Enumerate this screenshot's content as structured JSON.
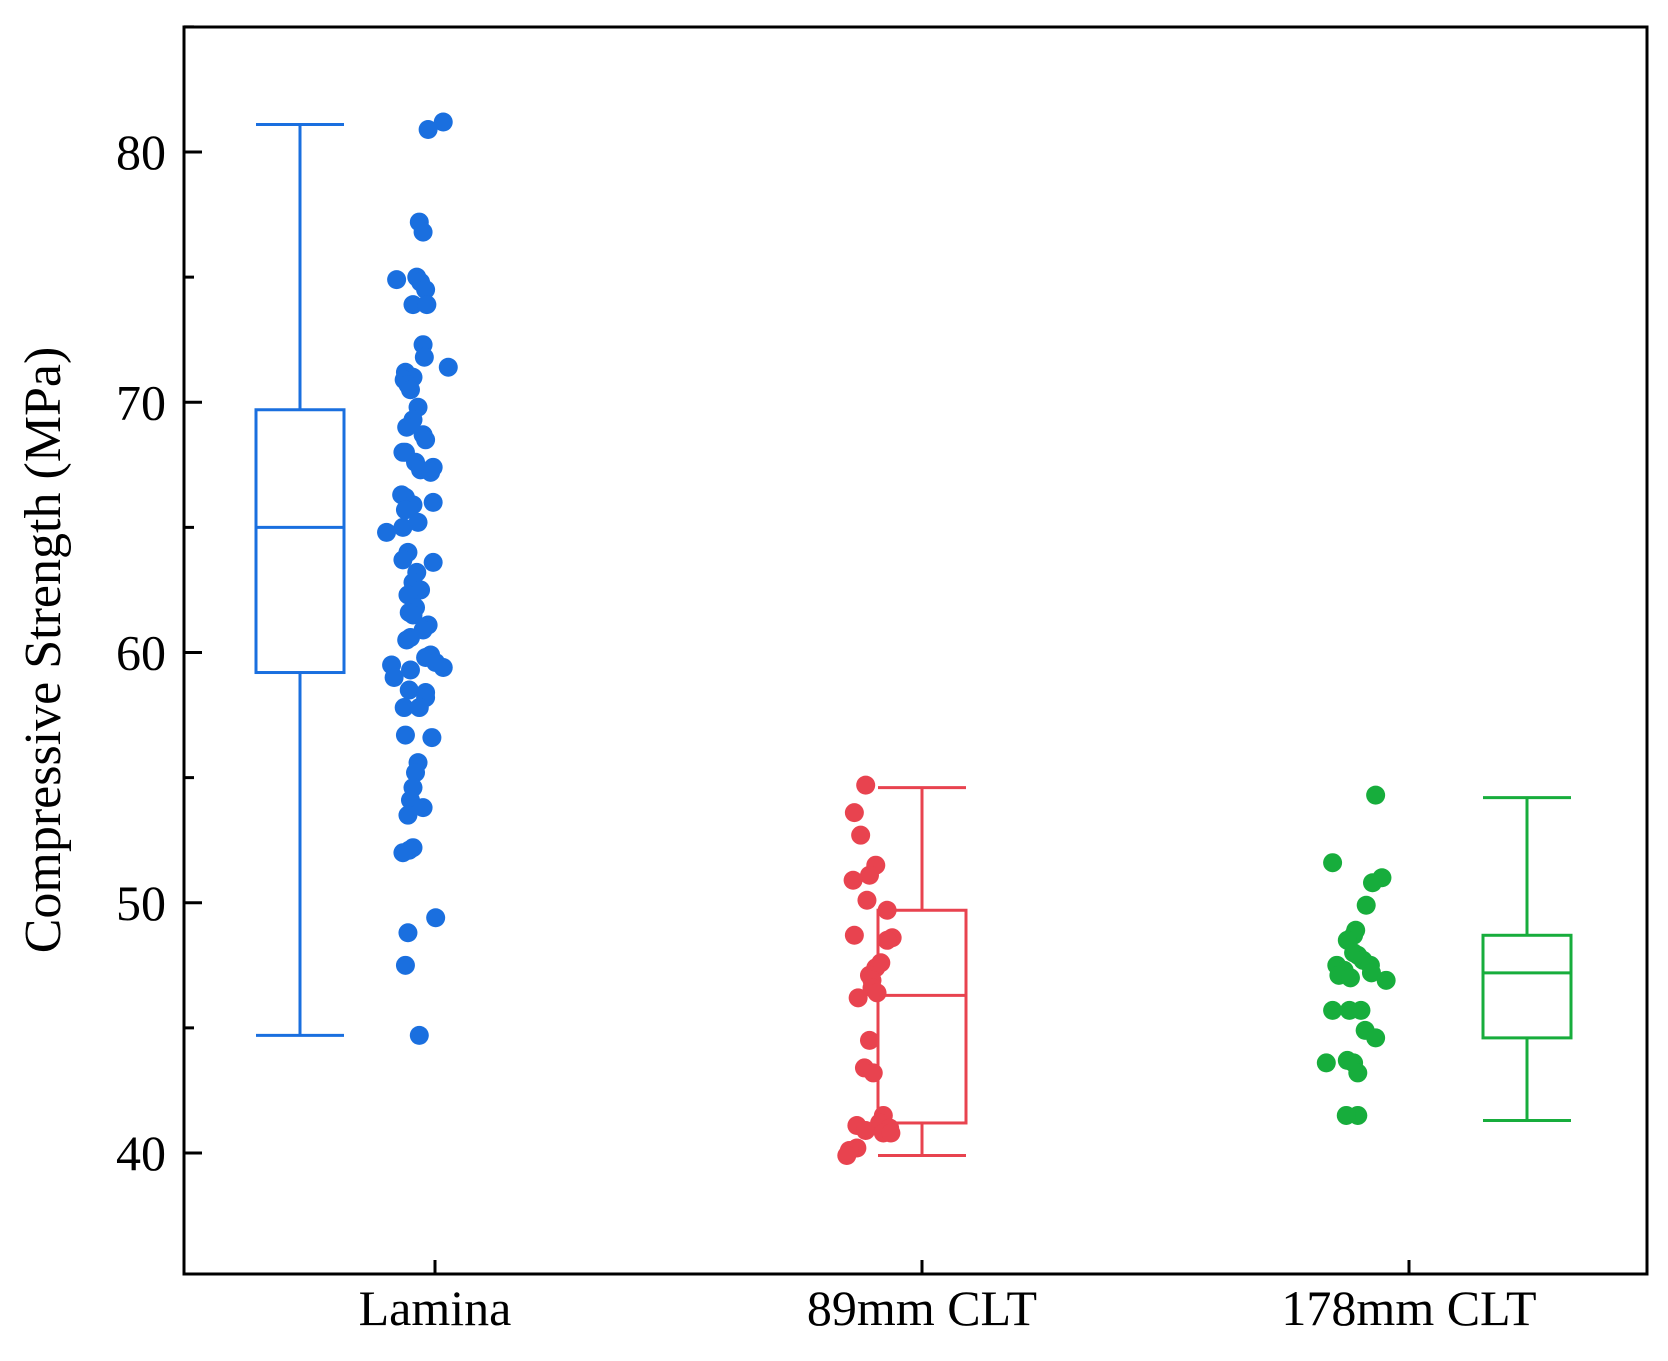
{
  "chart_data": {
    "type": "box",
    "title": "",
    "xlabel": "",
    "ylabel": "Compressive Strength (MPa)",
    "ylim": [
      35,
      85
    ],
    "yticks": [
      40,
      50,
      60,
      70,
      80
    ],
    "ytick_labels": [
      "40",
      "50",
      "60",
      "70",
      "80"
    ],
    "grid": false,
    "categories": [
      "Lamina",
      "89mm CLT",
      "178mm CLT"
    ],
    "series": [
      {
        "name": "Lamina",
        "color": "#1a6fdf",
        "box": {
          "whisker_low": 44.7,
          "q1": 59.2,
          "median": 65.0,
          "q3": 69.7,
          "whisker_high": 81.1
        },
        "points_side": "right",
        "points": [
          81.2,
          80.9,
          77.2,
          76.8,
          75.0,
          74.9,
          74.8,
          74.5,
          73.9,
          73.9,
          72.3,
          71.8,
          71.4,
          71.2,
          71.0,
          71.0,
          70.9,
          70.7,
          70.5,
          69.8,
          69.3,
          69.0,
          68.7,
          68.5,
          68.0,
          68.0,
          67.6,
          67.4,
          67.3,
          67.2,
          66.3,
          66.2,
          66.0,
          65.9,
          65.7,
          65.2,
          65.0,
          64.8,
          64.0,
          63.7,
          63.6,
          63.2,
          62.8,
          62.5,
          62.3,
          61.8,
          61.6,
          61.5,
          61.1,
          60.9,
          60.6,
          60.5,
          59.9,
          59.8,
          59.6,
          59.5,
          59.4,
          59.3,
          59.0,
          58.5,
          58.4,
          58.2,
          57.8,
          57.8,
          56.7,
          56.6,
          55.6,
          55.2,
          54.6,
          54.1,
          53.8,
          53.5,
          52.2,
          52.1,
          52.0,
          49.4,
          48.8,
          47.5,
          44.7
        ],
        "point_offsets": [
          0.24,
          0.12,
          0.05,
          0.08,
          0.03,
          -0.13,
          0.06,
          0.1,
          0.0,
          0.11,
          0.08,
          0.09,
          0.28,
          -0.06,
          -0.03,
          0.0,
          -0.07,
          -0.04,
          -0.02,
          0.04,
          0.0,
          -0.05,
          0.08,
          0.1,
          -0.08,
          -0.06,
          0.02,
          0.16,
          0.06,
          0.14,
          -0.09,
          -0.06,
          0.16,
          0.0,
          -0.06,
          0.04,
          -0.08,
          -0.21,
          -0.04,
          -0.08,
          0.16,
          0.03,
          0.0,
          0.06,
          -0.04,
          0.02,
          -0.03,
          0.0,
          0.12,
          0.08,
          -0.02,
          -0.05,
          0.14,
          0.1,
          0.18,
          -0.17,
          0.24,
          -0.02,
          -0.15,
          -0.03,
          0.1,
          0.1,
          -0.07,
          0.05,
          -0.06,
          0.15,
          0.04,
          0.02,
          0.0,
          -0.02,
          0.08,
          -0.04,
          0.0,
          -0.03,
          -0.08,
          0.18,
          -0.04,
          -0.06,
          0.05
        ]
      },
      {
        "name": "89mm CLT",
        "color": "#e8434f",
        "box": {
          "whisker_low": 39.9,
          "q1": 41.2,
          "median": 46.3,
          "q3": 49.7,
          "whisker_high": 54.6
        },
        "points_side": "center",
        "points": [
          54.7,
          53.6,
          52.7,
          51.5,
          51.1,
          50.9,
          50.1,
          49.7,
          48.7,
          48.6,
          48.5,
          47.6,
          47.4,
          47.1,
          46.9,
          46.6,
          46.4,
          46.2,
          44.5,
          43.4,
          43.2,
          41.5,
          41.2,
          41.1,
          41.0,
          40.9,
          40.8,
          40.8,
          40.2,
          40.1,
          39.9
        ],
        "point_offsets": [
          -0.05,
          -0.14,
          -0.09,
          0.03,
          -0.02,
          -0.15,
          -0.04,
          0.12,
          -0.14,
          0.16,
          0.12,
          0.07,
          0.03,
          -0.02,
          0.0,
          0.0,
          0.04,
          -0.11,
          -0.02,
          -0.06,
          0.01,
          0.09,
          0.06,
          -0.12,
          0.14,
          -0.05,
          0.09,
          0.15,
          -0.12,
          -0.18,
          -0.2
        ]
      },
      {
        "name": "178mm CLT",
        "color": "#17ad3c",
        "box": {
          "whisker_low": 41.3,
          "q1": 44.6,
          "median": 47.2,
          "q3": 48.7,
          "whisker_high": 54.2
        },
        "points_side": "left",
        "points": [
          54.3,
          51.6,
          51.0,
          50.8,
          49.9,
          48.9,
          48.7,
          48.5,
          48.0,
          47.9,
          47.7,
          47.5,
          47.5,
          47.3,
          47.2,
          47.1,
          47.0,
          46.9,
          45.7,
          45.7,
          45.7,
          44.9,
          44.6,
          43.7,
          43.6,
          43.6,
          43.2,
          41.5,
          41.5
        ],
        "point_offsets": [
          -0.47,
          -0.88,
          -0.41,
          -0.5,
          -0.56,
          -0.66,
          -0.68,
          -0.74,
          -0.68,
          -0.64,
          -0.59,
          -0.52,
          -0.84,
          -0.77,
          -0.51,
          -0.82,
          -0.71,
          -0.37,
          -0.88,
          -0.72,
          -0.61,
          -0.57,
          -0.47,
          -0.74,
          -0.68,
          -0.94,
          -0.64,
          -0.64,
          -0.75
        ]
      }
    ]
  }
}
